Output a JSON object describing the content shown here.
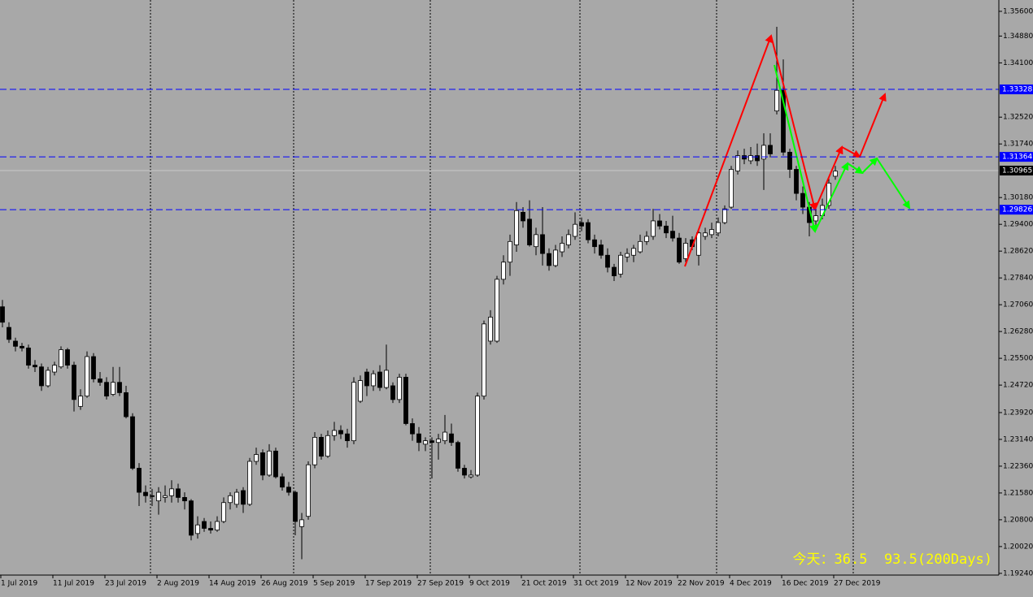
{
  "chart_data": {
    "type": "candlestick",
    "categories": [
      "1 Jul 2019",
      null,
      null,
      null,
      null,
      null,
      null,
      null,
      "11 Jul 2019",
      null,
      null,
      null,
      null,
      null,
      null,
      null,
      "23 Jul 2019",
      null,
      null,
      null,
      null,
      null,
      null,
      null,
      "2 Aug 2019",
      null,
      null,
      null,
      null,
      null,
      null,
      null,
      "14 Aug 2019",
      null,
      null,
      null,
      null,
      null,
      null,
      null,
      "26 Aug 2019",
      null,
      null,
      null,
      null,
      null,
      null,
      null,
      "5 Sep 2019",
      null,
      null,
      null,
      null,
      null,
      null,
      null,
      "17 Sep 2019",
      null,
      null,
      null,
      null,
      null,
      null,
      null,
      "27 Sep 2019",
      null,
      null,
      null,
      null,
      null,
      null,
      null,
      "9 Oct 2019",
      null,
      null,
      null,
      null,
      null,
      null,
      null,
      "21 Oct 2019",
      null,
      null,
      null,
      null,
      null,
      null,
      null,
      "31 Oct 2019",
      null,
      null,
      null,
      null,
      null,
      null,
      null,
      "12 Nov 2019",
      null,
      null,
      null,
      null,
      null,
      null,
      null,
      "22 Nov 2019",
      null,
      null,
      null,
      null,
      null,
      null,
      null,
      "4 Dec 2019",
      null,
      null,
      null,
      null,
      null,
      null,
      null,
      "16 Dec 2019",
      null,
      null,
      null,
      null,
      null,
      null,
      null,
      "27 Dec 2019"
    ],
    "open": [
      1.27,
      1.264,
      1.26,
      1.2585,
      1.258,
      1.253,
      1.2525,
      1.247,
      1.251,
      1.2525,
      1.2575,
      1.253,
      1.241,
      1.244,
      1.2555,
      1.249,
      1.248,
      1.2445,
      1.248,
      1.245,
      1.238,
      1.223,
      1.216,
      1.215,
      1.2135,
      1.2145,
      1.215,
      1.217,
      1.2145,
      1.2135,
      1.204,
      1.2075,
      1.2055,
      1.205,
      1.2075,
      1.213,
      1.2125,
      1.2165,
      1.2125,
      1.225,
      1.2275,
      1.221,
      1.228,
      1.2205,
      1.2175,
      1.216,
      1.206,
      1.209,
      1.224,
      1.232,
      1.2265,
      1.2325,
      1.234,
      1.233,
      1.231,
      1.2425,
      1.251,
      1.247,
      1.251,
      1.2465,
      1.247,
      1.243,
      1.2495,
      1.236,
      1.233,
      1.23,
      1.231,
      1.2305,
      1.231,
      1.233,
      1.2305,
      1.223,
      1.2205,
      1.221,
      1.244,
      1.26,
      1.26,
      1.278,
      1.283,
      1.288,
      1.2975,
      1.2955,
      1.2875,
      1.291,
      1.2855,
      1.282,
      1.286,
      1.288,
      1.2905,
      1.2945,
      1.2945,
      1.2895,
      1.288,
      1.285,
      1.2815,
      1.2795,
      1.2845,
      1.285,
      1.286,
      1.289,
      1.2905,
      1.295,
      1.2935,
      1.292,
      1.29,
      1.284,
      1.2895,
      1.285,
      1.2905,
      1.291,
      1.2915,
      1.2945,
      1.299,
      1.3095,
      1.314,
      1.3125,
      1.314,
      1.313,
      1.317,
      1.327,
      1.333,
      1.315,
      1.31,
      1.303,
      1.299,
      1.295,
      1.2965,
      1.2995,
      1.308
    ],
    "high": [
      1.272,
      1.2655,
      1.261,
      1.2595,
      1.259,
      1.2545,
      1.2535,
      1.2525,
      1.254,
      1.2585,
      1.258,
      1.254,
      1.246,
      1.257,
      1.2565,
      1.251,
      1.2495,
      1.2525,
      1.2525,
      1.247,
      1.239,
      1.2245,
      1.218,
      1.217,
      1.2175,
      1.218,
      1.2195,
      1.2185,
      1.216,
      1.214,
      1.209,
      1.2085,
      1.2075,
      1.209,
      1.2145,
      1.216,
      1.217,
      1.2175,
      1.226,
      1.229,
      1.2285,
      1.23,
      1.229,
      1.2215,
      1.219,
      1.2165,
      1.21,
      1.225,
      1.2335,
      1.233,
      1.234,
      1.2365,
      1.2355,
      1.2345,
      1.2495,
      1.25,
      1.252,
      1.2515,
      1.253,
      1.259,
      1.248,
      1.2505,
      1.2505,
      1.2375,
      1.235,
      1.232,
      1.232,
      1.233,
      1.2385,
      1.236,
      1.231,
      1.224,
      1.2225,
      1.245,
      1.266,
      1.269,
      1.279,
      1.285,
      1.291,
      1.3005,
      1.299,
      1.301,
      1.293,
      1.299,
      1.287,
      1.288,
      1.2905,
      1.2925,
      1.2975,
      1.296,
      1.2955,
      1.291,
      1.2895,
      1.287,
      1.2825,
      1.286,
      1.287,
      1.288,
      1.291,
      1.292,
      1.2985,
      1.297,
      1.295,
      1.2965,
      1.2915,
      1.29,
      1.2905,
      1.2925,
      1.293,
      1.2945,
      1.296,
      1.2995,
      1.311,
      1.3155,
      1.316,
      1.3165,
      1.3175,
      1.3205,
      1.3205,
      1.3515,
      1.342,
      1.316,
      1.311,
      1.305,
      1.3005,
      1.2985,
      1.3015,
      1.3075,
      1.311
    ],
    "low": [
      1.264,
      1.2595,
      1.257,
      1.257,
      1.252,
      1.251,
      1.2455,
      1.2465,
      1.25,
      1.252,
      1.252,
      1.2395,
      1.24,
      1.2435,
      1.248,
      1.247,
      1.243,
      1.244,
      1.244,
      1.2375,
      1.2225,
      1.212,
      1.213,
      1.212,
      1.2095,
      1.213,
      1.213,
      1.213,
      1.211,
      1.202,
      1.2025,
      1.2045,
      1.204,
      1.2045,
      1.207,
      1.211,
      1.2115,
      1.21,
      1.212,
      1.224,
      1.2195,
      1.2205,
      1.22,
      1.2165,
      1.215,
      1.2035,
      1.1965,
      1.208,
      1.223,
      1.2255,
      1.226,
      1.231,
      1.2315,
      1.229,
      1.23,
      1.242,
      1.244,
      1.2455,
      1.2455,
      1.246,
      1.242,
      1.242,
      1.2355,
      1.231,
      1.228,
      1.228,
      1.22,
      1.2255,
      1.23,
      1.2295,
      1.222,
      1.22,
      1.22,
      1.2205,
      1.243,
      1.259,
      1.2595,
      1.2765,
      1.279,
      1.286,
      1.293,
      1.2875,
      1.285,
      1.282,
      1.2805,
      1.2815,
      1.2845,
      1.287,
      1.2895,
      1.292,
      1.2885,
      1.2855,
      1.284,
      1.28,
      1.2775,
      1.2785,
      1.283,
      1.283,
      1.2855,
      1.288,
      1.2895,
      1.2925,
      1.29,
      1.289,
      1.2825,
      1.283,
      1.2865,
      1.282,
      1.2895,
      1.29,
      1.2905,
      1.294,
      1.2985,
      1.3085,
      1.3115,
      1.3115,
      1.311,
      1.304,
      1.3135,
      1.326,
      1.314,
      1.3075,
      1.301,
      1.297,
      1.2905,
      1.293,
      1.2955,
      1.2985,
      1.307
    ],
    "close": [
      1.2655,
      1.2605,
      1.2585,
      1.258,
      1.253,
      1.2525,
      1.247,
      1.2515,
      1.253,
      1.2575,
      1.253,
      1.243,
      1.244,
      1.2555,
      1.249,
      1.248,
      1.244,
      1.248,
      1.245,
      1.238,
      1.223,
      1.216,
      1.215,
      1.2148,
      1.216,
      1.215,
      1.217,
      1.2145,
      1.2135,
      1.2035,
      1.2065,
      1.2055,
      1.205,
      1.2075,
      1.213,
      1.215,
      1.216,
      1.2125,
      1.225,
      1.227,
      1.221,
      1.228,
      1.2205,
      1.2175,
      1.216,
      1.2075,
      1.208,
      1.224,
      1.232,
      1.2265,
      1.2325,
      1.234,
      1.233,
      1.231,
      1.248,
      1.2485,
      1.247,
      1.2505,
      1.2465,
      1.2515,
      1.243,
      1.2495,
      1.236,
      1.233,
      1.2305,
      1.231,
      1.2305,
      1.2315,
      1.2335,
      1.2305,
      1.223,
      1.221,
      1.221,
      1.244,
      1.265,
      1.267,
      1.278,
      1.283,
      1.289,
      1.298,
      1.295,
      1.288,
      1.291,
      1.2855,
      1.282,
      1.2865,
      1.2885,
      1.291,
      1.294,
      1.2935,
      1.2895,
      1.2875,
      1.285,
      1.2815,
      1.279,
      1.285,
      1.2855,
      1.287,
      1.289,
      1.2905,
      1.295,
      1.2935,
      1.2915,
      1.29,
      1.283,
      1.2885,
      1.2875,
      1.2915,
      1.2915,
      1.2925,
      1.2945,
      1.2985,
      1.31,
      1.314,
      1.313,
      1.314,
      1.3125,
      1.317,
      1.3145,
      1.333,
      1.315,
      1.31,
      1.303,
      1.299,
      1.2945,
      1.2965,
      1.2995,
      1.306,
      1.3095
    ],
    "up_color": "#ffffff",
    "down_color": "#000000",
    "background": "#a8a8a8",
    "ylim": [
      1.1919,
      1.3593
    ],
    "yticks": [
      {
        "value": 1.356,
        "label": "1.35600"
      },
      {
        "value": 1.3488,
        "label": "1.34880"
      },
      {
        "value": 1.341,
        "label": "1.34100"
      },
      {
        "value": 1.3252,
        "label": "1.32520"
      },
      {
        "value": 1.3174,
        "label": "1.31740"
      },
      {
        "value": 1.3018,
        "label": "1.30180"
      },
      {
        "value": 1.294,
        "label": "1.29400"
      },
      {
        "value": 1.2862,
        "label": "1.28620"
      },
      {
        "value": 1.2784,
        "label": "1.27840"
      },
      {
        "value": 1.2706,
        "label": "1.27060"
      },
      {
        "value": 1.2628,
        "label": "1.26280"
      },
      {
        "value": 1.255,
        "label": "1.25500"
      },
      {
        "value": 1.2472,
        "label": "1.24720"
      },
      {
        "value": 1.2392,
        "label": "1.23920"
      },
      {
        "value": 1.2314,
        "label": "1.23140"
      },
      {
        "value": 1.2236,
        "label": "1.22360"
      },
      {
        "value": 1.2158,
        "label": "1.21580"
      },
      {
        "value": 1.208,
        "label": "1.20800"
      },
      {
        "value": 1.2002,
        "label": "1.20020"
      },
      {
        "value": 1.1924,
        "label": "1.19240"
      }
    ],
    "levels": [
      1.33328,
      1.31364,
      1.29826
    ],
    "level_color": "#0000ff",
    "current_price": 1.30965,
    "annotation": "今天：36.5  93.5(200Days)"
  }
}
